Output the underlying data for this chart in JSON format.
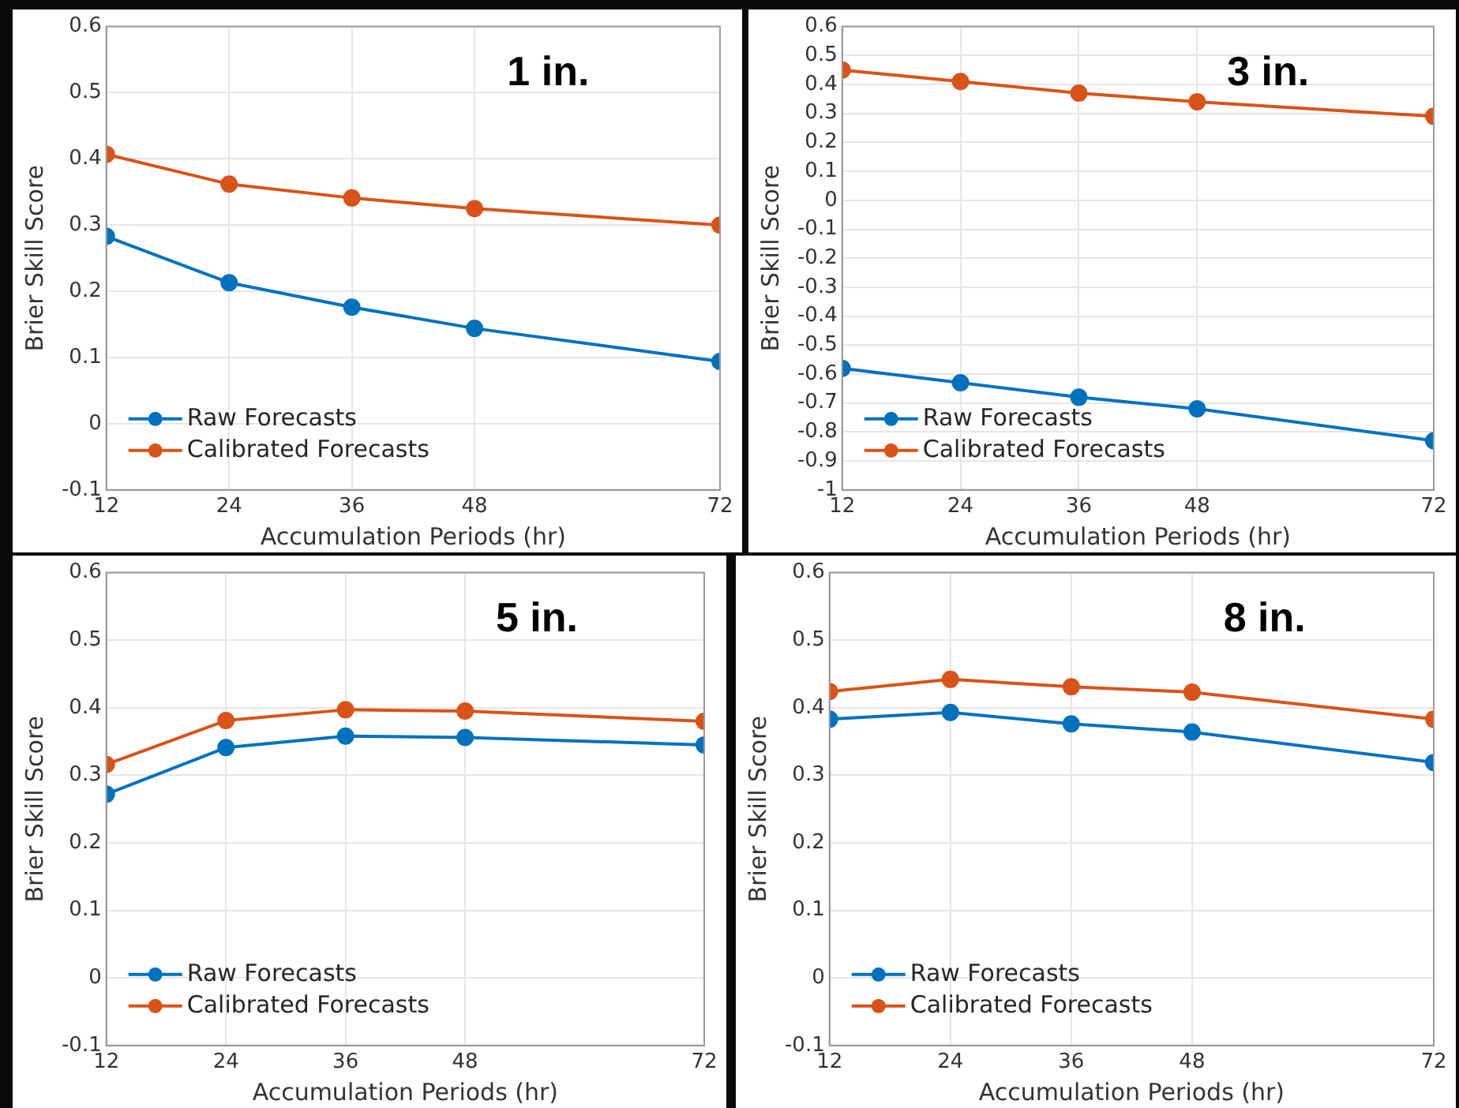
{
  "chart_data": [
    {
      "type": "line",
      "xlabel": "Accumulation Periods (hr)",
      "ylabel": "Brier Skill Score",
      "annotations": [
        "1 in."
      ],
      "x": [
        12,
        24,
        36,
        48,
        72
      ],
      "xlim": [
        12,
        72
      ],
      "xticks": [
        12,
        24,
        36,
        48,
        72
      ],
      "ylim": [
        -0.1,
        0.6
      ],
      "yticks": [
        -0.1,
        0,
        0.1,
        0.2,
        0.3,
        0.4,
        0.5,
        0.6
      ],
      "grid": true,
      "legend": "bottom left",
      "marker": "circle",
      "line_style": "solid",
      "series": [
        {
          "name": "Raw Forecasts",
          "color": "#0072bd",
          "values": [
            0.283,
            0.213,
            0.176,
            0.144,
            0.094
          ]
        },
        {
          "name": "Calibrated Forecasts",
          "color": "#d95319",
          "values": [
            0.407,
            0.362,
            0.341,
            0.325,
            0.3
          ]
        }
      ]
    },
    {
      "type": "line",
      "xlabel": "Accumulation Periods (hr)",
      "ylabel": "Brier Skill Score",
      "annotations": [
        "3 in."
      ],
      "x": [
        12,
        24,
        36,
        48,
        72
      ],
      "xlim": [
        12,
        72
      ],
      "xticks": [
        12,
        24,
        36,
        48,
        72
      ],
      "ylim": [
        -1,
        0.6
      ],
      "yticks": [
        -1,
        -0.9,
        -0.8,
        -0.7,
        -0.6,
        -0.5,
        -0.4,
        -0.3,
        -0.2,
        -0.1,
        0,
        0.1,
        0.2,
        0.3,
        0.4,
        0.5,
        0.6
      ],
      "grid": true,
      "legend": "bottom left",
      "marker": "circle",
      "line_style": "solid",
      "series": [
        {
          "name": "Raw Forecasts",
          "color": "#0072bd",
          "values": [
            -0.58,
            -0.63,
            -0.68,
            -0.72,
            -0.83
          ]
        },
        {
          "name": "Calibrated Forecasts",
          "color": "#d95319",
          "values": [
            0.45,
            0.41,
            0.37,
            0.34,
            0.29
          ]
        }
      ]
    },
    {
      "type": "line",
      "xlabel": "Accumulation Periods (hr)",
      "ylabel": "Brier Skill Score",
      "annotations": [
        "5 in."
      ],
      "x": [
        12,
        24,
        36,
        48,
        72
      ],
      "xlim": [
        12,
        72
      ],
      "xticks": [
        12,
        24,
        36,
        48,
        72
      ],
      "ylim": [
        -0.1,
        0.6
      ],
      "yticks": [
        -0.1,
        0,
        0.1,
        0.2,
        0.3,
        0.4,
        0.5,
        0.6
      ],
      "grid": true,
      "legend": "bottom left",
      "marker": "circle",
      "line_style": "solid",
      "series": [
        {
          "name": "Raw Forecasts",
          "color": "#0072bd",
          "values": [
            0.272,
            0.341,
            0.358,
            0.356,
            0.345
          ]
        },
        {
          "name": "Calibrated Forecasts",
          "color": "#d95319",
          "values": [
            0.316,
            0.381,
            0.397,
            0.395,
            0.38
          ]
        }
      ]
    },
    {
      "type": "line",
      "xlabel": "Accumulation Periods (hr)",
      "ylabel": "Brier Skill Score",
      "annotations": [
        "8 in."
      ],
      "x": [
        12,
        24,
        36,
        48,
        72
      ],
      "xlim": [
        12,
        72
      ],
      "xticks": [
        12,
        24,
        36,
        48,
        72
      ],
      "ylim": [
        -0.1,
        0.6
      ],
      "yticks": [
        -0.1,
        0,
        0.1,
        0.2,
        0.3,
        0.4,
        0.5,
        0.6
      ],
      "grid": true,
      "legend": "bottom left",
      "marker": "circle",
      "line_style": "solid",
      "series": [
        {
          "name": "Raw Forecasts",
          "color": "#0072bd",
          "values": [
            0.383,
            0.393,
            0.376,
            0.364,
            0.319
          ]
        },
        {
          "name": "Calibrated Forecasts",
          "color": "#d95319",
          "values": [
            0.424,
            0.442,
            0.431,
            0.423,
            0.383
          ]
        }
      ]
    }
  ]
}
